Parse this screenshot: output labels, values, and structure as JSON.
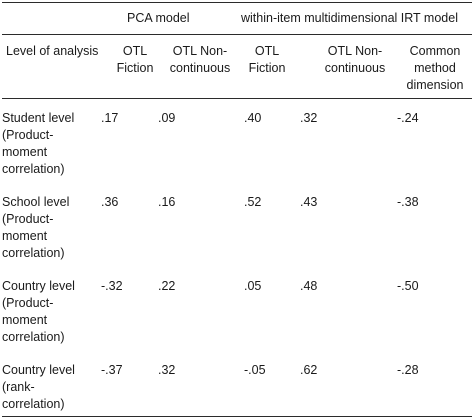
{
  "table": {
    "group_headers": {
      "pca": "PCA model",
      "irt": "within-item multidimensional IRT model"
    },
    "col_headers": {
      "level": "Level of analysis",
      "pca_fiction": "OTL\nFiction",
      "pca_noncont": "OTL Non-\ncontinuous",
      "irt_fiction": "OTL\nFiction",
      "irt_noncont": "OTL Non-\ncontinuous",
      "irt_cmd": "Common\nmethod\ndimension"
    },
    "rows": [
      {
        "label": "Student level\n(Product-\nmoment\ncorrelation)",
        "v1": ".17",
        "v2": ".09",
        "v3": ".40",
        "v4": ".32",
        "v5": "-.24"
      },
      {
        "label": "School level\n(Product-\nmoment\ncorrelation)",
        "v1": ".36",
        "v2": ".16",
        "v3": ".52",
        "v4": ".43",
        "v5": "-.38"
      },
      {
        "label": "Country level\n(Product-\nmoment\ncorrelation)",
        "v1": "-.32",
        "v2": ".22",
        "v3": ".05",
        "v4": ".48",
        "v5": "-.50"
      },
      {
        "label": "Country level\n(rank-\ncorrelation)",
        "v1": "-.37",
        "v2": ".32",
        "v3": "-.05",
        "v4": ".62",
        "v5": "-.28"
      }
    ]
  }
}
